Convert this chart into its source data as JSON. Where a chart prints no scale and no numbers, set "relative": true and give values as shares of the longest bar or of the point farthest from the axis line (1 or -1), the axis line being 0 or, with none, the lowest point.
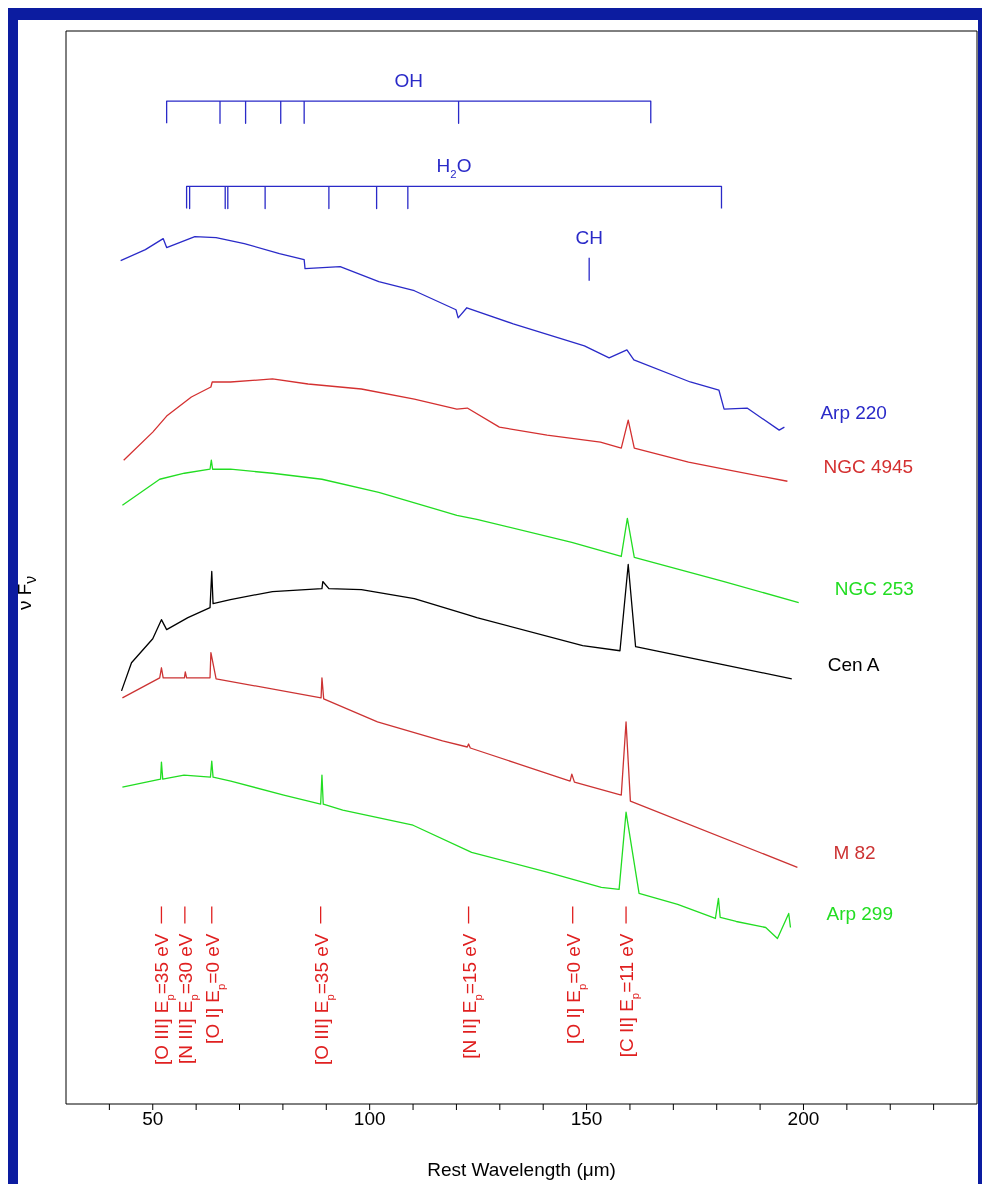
{
  "chart_data": {
    "type": "line",
    "relative": true,
    "xlabel": "Rest Wavelength (μm)",
    "ylabel": "ν F$_{ν}$",
    "xlim": [
      30,
      240
    ],
    "xticks": [
      {
        "value": 40,
        "label": null
      },
      50,
      {
        "value": 60,
        "label": null
      },
      {
        "value": 70,
        "label": null
      },
      {
        "value": 80,
        "label": null
      },
      {
        "value": 90,
        "label": null
      },
      100,
      {
        "value": 110,
        "label": null
      },
      {
        "value": 120,
        "label": null
      },
      {
        "value": 130,
        "label": null
      },
      {
        "value": 140,
        "label": null
      },
      150,
      {
        "value": 160,
        "label": null
      },
      {
        "value": 170,
        "label": null
      },
      {
        "value": 180,
        "label": null
      },
      {
        "value": 190,
        "label": null
      },
      200,
      {
        "value": 210,
        "label": null
      },
      {
        "value": 220,
        "label": null
      },
      {
        "value": 230,
        "label": null
      }
    ],
    "marker": "none",
    "series": [
      {
        "name": "Arp 220",
        "color": "#2a2ac8",
        "x": [
          42.6,
          48.3,
          52.4,
          53.2,
          59.7,
          64.6,
          71.1,
          79.2,
          84.9,
          85.1,
          93.2,
          102.1,
          110.3,
          119.9,
          120.4,
          122.4,
          133.1,
          149.5,
          155.2,
          159.3,
          160.9,
          173.9,
          180.5,
          181.7,
          187.0,
          194.4,
          195.6
        ],
        "values": [
          0.841,
          0.852,
          0.863,
          0.854,
          0.865,
          0.864,
          0.858,
          0.848,
          0.842,
          0.833,
          0.835,
          0.82,
          0.811,
          0.792,
          0.784,
          0.794,
          0.778,
          0.756,
          0.744,
          0.752,
          0.742,
          0.72,
          0.712,
          0.693,
          0.694,
          0.672,
          0.675
        ]
      },
      {
        "name": "NGC 4945",
        "color": "#d43030",
        "x": [
          43.3,
          50.0,
          53.2,
          58.9,
          63.4,
          63.7,
          67.9,
          77.6,
          85.8,
          98.1,
          110.3,
          120.1,
          122.5,
          129.9,
          140.9,
          153.2,
          158.0,
          159.6,
          161.0,
          173.5,
          181.7,
          196.3
        ],
        "values": [
          0.642,
          0.67,
          0.686,
          0.705,
          0.715,
          0.72,
          0.72,
          0.723,
          0.718,
          0.713,
          0.703,
          0.693,
          0.694,
          0.675,
          0.667,
          0.66,
          0.654,
          0.682,
          0.654,
          0.64,
          0.633,
          0.621
        ]
      },
      {
        "name": "NGC 253",
        "color": "#22dd22",
        "x": [
          43.0,
          51.6,
          57.3,
          63.2,
          63.5,
          63.8,
          67.9,
          77.6,
          89.0,
          102.1,
          120.1,
          124.7,
          146.6,
          158.0,
          159.4,
          161.0,
          181.7,
          198.9
        ],
        "values": [
          0.597,
          0.623,
          0.629,
          0.633,
          0.642,
          0.633,
          0.633,
          0.629,
          0.623,
          0.61,
          0.587,
          0.583,
          0.56,
          0.546,
          0.584,
          0.545,
          0.521,
          0.5
        ]
      },
      {
        "name": "Cen A",
        "color": "#000000",
        "x": [
          42.8,
          45.1,
          50.0,
          52.0,
          53.2,
          58.1,
          63.2,
          63.6,
          63.9,
          67.9,
          77.6,
          89.0,
          89.2,
          90.6,
          98.1,
          110.3,
          122.5,
          124.7,
          149.1,
          157.7,
          159.6,
          161.3,
          181.7,
          197.3
        ],
        "values": [
          0.412,
          0.44,
          0.464,
          0.483,
          0.473,
          0.485,
          0.495,
          0.531,
          0.499,
          0.503,
          0.511,
          0.514,
          0.521,
          0.514,
          0.513,
          0.504,
          0.488,
          0.485,
          0.457,
          0.452,
          0.538,
          0.456,
          0.438,
          0.424
        ]
      },
      {
        "name": "M 82",
        "color": "#cc3333",
        "x": [
          43.0,
          51.6,
          52.0,
          52.4,
          57.3,
          57.5,
          57.8,
          63.2,
          63.4,
          64.6,
          88.8,
          89.0,
          89.4,
          101.8,
          116.8,
          122.5,
          122.8,
          123.2,
          146.2,
          146.6,
          147.2,
          158.0,
          159.1,
          160.1,
          198.6
        ],
        "values": [
          0.405,
          0.425,
          0.435,
          0.425,
          0.425,
          0.431,
          0.425,
          0.425,
          0.45,
          0.424,
          0.405,
          0.425,
          0.404,
          0.381,
          0.362,
          0.356,
          0.359,
          0.355,
          0.322,
          0.329,
          0.321,
          0.308,
          0.381,
          0.302,
          0.236
        ]
      },
      {
        "name": "Arp 299",
        "color": "#22dd22",
        "x": [
          43.0,
          51.8,
          52.0,
          52.3,
          57.2,
          63.3,
          63.6,
          63.9,
          68.0,
          80.2,
          88.7,
          89.0,
          89.3,
          93.8,
          110.0,
          123.5,
          141.1,
          153.4,
          157.5,
          159.1,
          162.1,
          171.0,
          179.7,
          180.4,
          180.8,
          184.5,
          191.3,
          194.0,
          196.6,
          197.0
        ],
        "values": [
          0.316,
          0.324,
          0.341,
          0.324,
          0.328,
          0.326,
          0.342,
          0.326,
          0.322,
          0.308,
          0.299,
          0.328,
          0.299,
          0.293,
          0.278,
          0.251,
          0.231,
          0.216,
          0.214,
          0.291,
          0.21,
          0.199,
          0.185,
          0.205,
          0.186,
          0.182,
          0.176,
          0.165,
          0.19,
          0.176
        ]
      },
      {
        "color": "#2a2ac8",
        "x": [
          53.2,
          53.2,
          65.5,
          65.5,
          65.5,
          71.4,
          71.4,
          71.4,
          79.5,
          79.5,
          79.5,
          84.9,
          84.9,
          84.9,
          120.5,
          120.5,
          120.5,
          164.8,
          164.8
        ],
        "values": [
          0.978,
          1,
          1,
          0.978,
          1,
          1,
          0.978,
          1,
          1,
          0.978,
          1,
          1,
          0.978,
          1,
          1,
          0.978,
          1,
          1,
          0.978
        ]
      },
      {
        "color": "#2a2ac8",
        "x": [
          57.8,
          57.8,
          58.5,
          58.5,
          58.5,
          66.7,
          66.7,
          66.7,
          67.3,
          67.3,
          67.3,
          75.9,
          75.9,
          75.9,
          90.6,
          90.6,
          90.6,
          101.6,
          101.6,
          101.6,
          108.8,
          108.8,
          108.8,
          181.1,
          181.1
        ],
        "values": [
          0.893,
          0.915,
          0.915,
          0.893,
          0.915,
          0.915,
          0.893,
          0.915,
          0.915,
          0.893,
          0.915,
          0.915,
          0.893,
          0.915,
          0.915,
          0.893,
          0.915,
          0.915,
          0.893,
          0.915,
          0.915,
          0.893,
          0.915,
          0.915,
          0.893
        ]
      },
      {
        "color": "#2a2ac8",
        "x": [
          150.6,
          150.6
        ],
        "values": [
          0.821,
          0.844
        ]
      },
      {
        "color": "#e02020",
        "x": [
          52.0,
          52.0
        ],
        "values": [
          0.18,
          0.197
        ]
      },
      {
        "color": "#e02020",
        "x": [
          57.4,
          57.4
        ],
        "values": [
          0.18,
          0.197
        ]
      },
      {
        "color": "#e02020",
        "x": [
          63.6,
          63.6
        ],
        "values": [
          0.18,
          0.197
        ]
      },
      {
        "color": "#e02020",
        "x": [
          88.7,
          88.7
        ],
        "values": [
          0.18,
          0.197
        ]
      },
      {
        "color": "#e02020",
        "x": [
          122.8,
          122.8
        ],
        "values": [
          0.18,
          0.197
        ]
      },
      {
        "color": "#e02020",
        "x": [
          146.8,
          146.8
        ],
        "values": [
          0.18,
          0.197
        ]
      },
      {
        "color": "#e02020",
        "x": [
          159.1,
          159.1
        ],
        "values": [
          0.18,
          0.197
        ]
      }
    ],
    "annotations": [
      "OH",
      "H$_{2}$O",
      "CH",
      "[O III] E$_{p}$=35 eV",
      "[N III] E$_{p}$=30 eV",
      "[O I] E$_{p}$=0 eV",
      "[O III] E$_{p}$=35 eV",
      "[N II] E$_{p}$=15 eV",
      "[O I] E$_{p}$=0 eV",
      "[C II] E$_{p}$=11 eV"
    ]
  }
}
